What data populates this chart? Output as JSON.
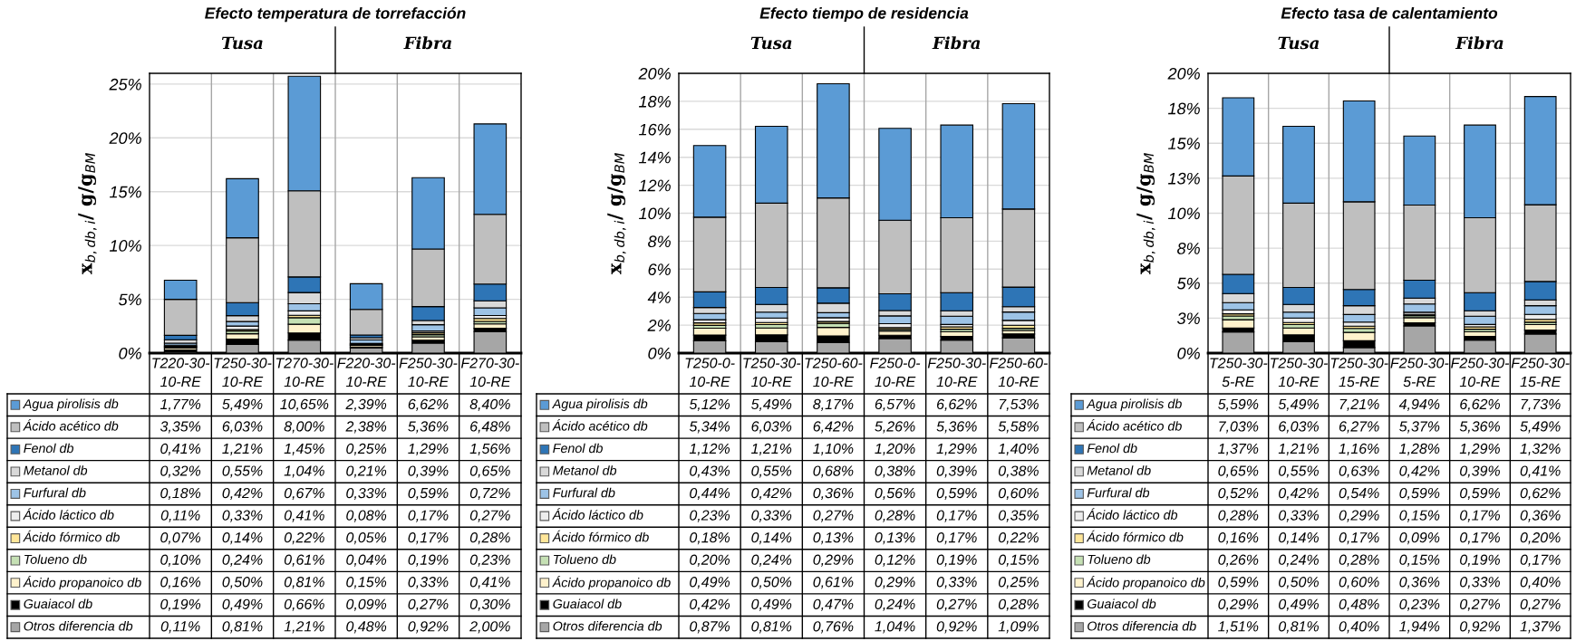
{
  "chart_data": [
    {
      "type": "bar",
      "stacked": true,
      "title": "Efecto temperatura de torrefacción",
      "ylabel": "x$_{b,db,i}$/ g/g$_{BM}$",
      "annotations": [
        "Tusa",
        "Fibra"
      ],
      "categories": [
        "T220-30-10-RE",
        "T250-30-10-RE",
        "T270-30-10-RE",
        "F220-30-10-RE",
        "F250-30-10-RE",
        "F270-30-10-RE"
      ],
      "ylim": [
        0,
        26
      ],
      "yticks": [
        {
          "value": 0,
          "label": "0%"
        },
        {
          "value": 5,
          "label": "5%"
        },
        {
          "value": 10,
          "label": "10%"
        },
        {
          "value": 15,
          "label": "15%"
        },
        {
          "value": 20,
          "label": "20%"
        },
        {
          "value": 25,
          "label": "25%"
        }
      ],
      "grid": "y",
      "legend": "bottom",
      "series": [
        {
          "name": "Otros diferencia db",
          "color": "#a6a6a6",
          "values": [
            0.11,
            0.81,
            1.21,
            0.48,
            0.92,
            2.0
          ],
          "value_labels": [
            "0,11%",
            "0,81%",
            "1,21%",
            "0,48%",
            "0,92%",
            "2,00%"
          ]
        },
        {
          "name": "Guaiacol db",
          "color": "#000000",
          "values": [
            0.19,
            0.49,
            0.66,
            0.09,
            0.27,
            0.3
          ],
          "value_labels": [
            "0,19%",
            "0,49%",
            "0,66%",
            "0,09%",
            "0,27%",
            "0,30%"
          ]
        },
        {
          "name": "Ácido propanoico db",
          "color": "#fff2cc",
          "values": [
            0.16,
            0.5,
            0.81,
            0.15,
            0.33,
            0.41
          ],
          "value_labels": [
            "0,16%",
            "0,50%",
            "0,81%",
            "0,15%",
            "0,33%",
            "0,41%"
          ]
        },
        {
          "name": "Tolueno db",
          "color": "#c5e0b4",
          "values": [
            0.1,
            0.24,
            0.61,
            0.04,
            0.19,
            0.23
          ],
          "value_labels": [
            "0,10%",
            "0,24%",
            "0,61%",
            "0,04%",
            "0,19%",
            "0,23%"
          ]
        },
        {
          "name": "Ácido fórmico db",
          "color": "#ffe699",
          "values": [
            0.07,
            0.14,
            0.22,
            0.05,
            0.17,
            0.28
          ],
          "value_labels": [
            "0,07%",
            "0,14%",
            "0,22%",
            "0,05%",
            "0,17%",
            "0,28%"
          ]
        },
        {
          "name": "Ácido láctico db",
          "color": "#ededed",
          "values": [
            0.11,
            0.33,
            0.41,
            0.08,
            0.17,
            0.27
          ],
          "value_labels": [
            "0,11%",
            "0,33%",
            "0,41%",
            "0,08%",
            "0,17%",
            "0,27%"
          ]
        },
        {
          "name": "Furfural db",
          "color": "#9dc3e6",
          "values": [
            0.18,
            0.42,
            0.67,
            0.33,
            0.59,
            0.72
          ],
          "value_labels": [
            "0,18%",
            "0,42%",
            "0,67%",
            "0,33%",
            "0,59%",
            "0,72%"
          ]
        },
        {
          "name": "Metanol db",
          "color": "#d9d9d9",
          "values": [
            0.32,
            0.55,
            1.04,
            0.21,
            0.39,
            0.65
          ],
          "value_labels": [
            "0,32%",
            "0,55%",
            "1,04%",
            "0,21%",
            "0,39%",
            "0,65%"
          ]
        },
        {
          "name": "Fenol db",
          "color": "#2e75b6",
          "values": [
            0.41,
            1.21,
            1.45,
            0.25,
            1.29,
            1.56
          ],
          "value_labels": [
            "0,41%",
            "1,21%",
            "1,45%",
            "0,25%",
            "1,29%",
            "1,56%"
          ]
        },
        {
          "name": "Ácido acético db",
          "color": "#bfbfbf",
          "values": [
            3.35,
            6.03,
            8.0,
            2.38,
            5.36,
            6.48
          ],
          "value_labels": [
            "3,35%",
            "6,03%",
            "8,00%",
            "2,38%",
            "5,36%",
            "6,48%"
          ]
        },
        {
          "name": "Agua pirolisis db",
          "color": "#5b9bd5",
          "values": [
            1.77,
            5.49,
            10.65,
            2.39,
            6.62,
            8.4
          ],
          "value_labels": [
            "1,77%",
            "5,49%",
            "10,65%",
            "2,39%",
            "6,62%",
            "8,40%"
          ]
        }
      ]
    },
    {
      "type": "bar",
      "stacked": true,
      "title": "Efecto tiempo de residencia",
      "ylabel": "x$_{b,db,i}$/ g/g$_{BM}$",
      "annotations": [
        "Tusa",
        "Fibra"
      ],
      "categories": [
        "T250-0-10-RE",
        "T250-30-10-RE",
        "T250-60-10-RE",
        "F250-0-10-RE",
        "F250-30-10-RE",
        "F250-60-10-RE"
      ],
      "ylim": [
        0,
        20
      ],
      "yticks": [
        {
          "value": 0,
          "label": "0%"
        },
        {
          "value": 2,
          "label": "2%"
        },
        {
          "value": 4,
          "label": "4%"
        },
        {
          "value": 6,
          "label": "6%"
        },
        {
          "value": 8,
          "label": "8%"
        },
        {
          "value": 10,
          "label": "10%"
        },
        {
          "value": 12,
          "label": "12%"
        },
        {
          "value": 14,
          "label": "14%"
        },
        {
          "value": 16,
          "label": "16%"
        },
        {
          "value": 18,
          "label": "18%"
        },
        {
          "value": 20,
          "label": "20%"
        }
      ],
      "grid": "y",
      "legend": "bottom",
      "series": [
        {
          "name": "Otros diferencia db",
          "color": "#a6a6a6",
          "values": [
            0.87,
            0.81,
            0.76,
            1.04,
            0.92,
            1.09
          ],
          "value_labels": [
            "0,87%",
            "0,81%",
            "0,76%",
            "1,04%",
            "0,92%",
            "1,09%"
          ]
        },
        {
          "name": "Guaiacol db",
          "color": "#000000",
          "values": [
            0.42,
            0.49,
            0.47,
            0.24,
            0.27,
            0.28
          ],
          "value_labels": [
            "0,42%",
            "0,49%",
            "0,47%",
            "0,24%",
            "0,27%",
            "0,28%"
          ]
        },
        {
          "name": "Ácido propanoico db",
          "color": "#fff2cc",
          "values": [
            0.49,
            0.5,
            0.61,
            0.29,
            0.33,
            0.25
          ],
          "value_labels": [
            "0,49%",
            "0,50%",
            "0,61%",
            "0,29%",
            "0,33%",
            "0,25%"
          ]
        },
        {
          "name": "Tolueno db",
          "color": "#c5e0b4",
          "values": [
            0.2,
            0.24,
            0.29,
            0.12,
            0.19,
            0.15
          ],
          "value_labels": [
            "0,20%",
            "0,24%",
            "0,29%",
            "0,12%",
            "0,19%",
            "0,15%"
          ]
        },
        {
          "name": "Ácido fórmico db",
          "color": "#ffe699",
          "values": [
            0.18,
            0.14,
            0.13,
            0.13,
            0.17,
            0.22
          ],
          "value_labels": [
            "0,18%",
            "0,14%",
            "0,13%",
            "0,13%",
            "0,17%",
            "0,22%"
          ]
        },
        {
          "name": "Ácido láctico db",
          "color": "#ededed",
          "values": [
            0.23,
            0.33,
            0.27,
            0.28,
            0.17,
            0.35
          ],
          "value_labels": [
            "0,23%",
            "0,33%",
            "0,27%",
            "0,28%",
            "0,17%",
            "0,35%"
          ]
        },
        {
          "name": "Furfural db",
          "color": "#9dc3e6",
          "values": [
            0.44,
            0.42,
            0.36,
            0.56,
            0.59,
            0.6
          ],
          "value_labels": [
            "0,44%",
            "0,42%",
            "0,36%",
            "0,56%",
            "0,59%",
            "0,60%"
          ]
        },
        {
          "name": "Metanol db",
          "color": "#d9d9d9",
          "values": [
            0.43,
            0.55,
            0.68,
            0.38,
            0.39,
            0.38
          ],
          "value_labels": [
            "0,43%",
            "0,55%",
            "0,68%",
            "0,38%",
            "0,39%",
            "0,38%"
          ]
        },
        {
          "name": "Fenol db",
          "color": "#2e75b6",
          "values": [
            1.12,
            1.21,
            1.1,
            1.2,
            1.29,
            1.4
          ],
          "value_labels": [
            "1,12%",
            "1,21%",
            "1,10%",
            "1,20%",
            "1,29%",
            "1,40%"
          ]
        },
        {
          "name": "Ácido acético db",
          "color": "#bfbfbf",
          "values": [
            5.34,
            6.03,
            6.42,
            5.26,
            5.36,
            5.58
          ],
          "value_labels": [
            "5,34%",
            "6,03%",
            "6,42%",
            "5,26%",
            "5,36%",
            "5,58%"
          ]
        },
        {
          "name": "Agua pirolisis db",
          "color": "#5b9bd5",
          "values": [
            5.12,
            5.49,
            8.17,
            6.57,
            6.62,
            7.53
          ],
          "value_labels": [
            "5,12%",
            "5,49%",
            "8,17%",
            "6,57%",
            "6,62%",
            "7,53%"
          ]
        }
      ]
    },
    {
      "type": "bar",
      "stacked": true,
      "title": "Efecto tasa de calentamiento",
      "ylabel": "x$_{b,db,i}$/ g/g$_{BM}$",
      "annotations": [
        "Tusa",
        "Fibra"
      ],
      "categories": [
        "T250-30-5-RE",
        "T250-30-10-RE",
        "T250-30-15-RE",
        "F250-30-5-RE",
        "F250-30-10-RE",
        "F250-30-15-RE"
      ],
      "ylim": [
        0,
        20
      ],
      "yticks": [
        {
          "value": 0,
          "label": "0%"
        },
        {
          "value": 2.5,
          "label": "3%"
        },
        {
          "value": 5,
          "label": "5%"
        },
        {
          "value": 7.5,
          "label": "8%"
        },
        {
          "value": 10,
          "label": "10%"
        },
        {
          "value": 12.5,
          "label": "13%"
        },
        {
          "value": 15,
          "label": "15%"
        },
        {
          "value": 17.5,
          "label": "18%"
        },
        {
          "value": 20,
          "label": "20%"
        }
      ],
      "grid": "y",
      "legend": "bottom",
      "series": [
        {
          "name": "Otros diferencia db",
          "color": "#a6a6a6",
          "values": [
            1.51,
            0.81,
            0.4,
            1.94,
            0.92,
            1.37
          ],
          "value_labels": [
            "1,51%",
            "0,81%",
            "0,40%",
            "1,94%",
            "0,92%",
            "1,37%"
          ]
        },
        {
          "name": "Guaiacol db",
          "color": "#000000",
          "values": [
            0.29,
            0.49,
            0.48,
            0.23,
            0.27,
            0.27
          ],
          "value_labels": [
            "0,29%",
            "0,49%",
            "0,48%",
            "0,23%",
            "0,27%",
            "0,27%"
          ]
        },
        {
          "name": "Ácido propanoico db",
          "color": "#fff2cc",
          "values": [
            0.59,
            0.5,
            0.6,
            0.36,
            0.33,
            0.4
          ],
          "value_labels": [
            "0,59%",
            "0,50%",
            "0,60%",
            "0,36%",
            "0,33%",
            "0,40%"
          ]
        },
        {
          "name": "Tolueno db",
          "color": "#c5e0b4",
          "values": [
            0.26,
            0.24,
            0.28,
            0.15,
            0.19,
            0.17
          ],
          "value_labels": [
            "0,26%",
            "0,24%",
            "0,28%",
            "0,15%",
            "0,19%",
            "0,17%"
          ]
        },
        {
          "name": "Ácido fórmico db",
          "color": "#ffe699",
          "values": [
            0.16,
            0.14,
            0.17,
            0.09,
            0.17,
            0.2
          ],
          "value_labels": [
            "0,16%",
            "0,14%",
            "0,17%",
            "0,09%",
            "0,17%",
            "0,20%"
          ]
        },
        {
          "name": "Ácido láctico db",
          "color": "#ededed",
          "values": [
            0.28,
            0.33,
            0.29,
            0.15,
            0.17,
            0.36
          ],
          "value_labels": [
            "0,28%",
            "0,33%",
            "0,29%",
            "0,15%",
            "0,17%",
            "0,36%"
          ]
        },
        {
          "name": "Furfural db",
          "color": "#9dc3e6",
          "values": [
            0.52,
            0.42,
            0.54,
            0.59,
            0.59,
            0.62
          ],
          "value_labels": [
            "0,52%",
            "0,42%",
            "0,54%",
            "0,59%",
            "0,59%",
            "0,62%"
          ]
        },
        {
          "name": "Metanol db",
          "color": "#d9d9d9",
          "values": [
            0.65,
            0.55,
            0.63,
            0.42,
            0.39,
            0.41
          ],
          "value_labels": [
            "0,65%",
            "0,55%",
            "0,63%",
            "0,42%",
            "0,39%",
            "0,41%"
          ]
        },
        {
          "name": "Fenol db",
          "color": "#2e75b6",
          "values": [
            1.37,
            1.21,
            1.16,
            1.28,
            1.29,
            1.32
          ],
          "value_labels": [
            "1,37%",
            "1,21%",
            "1,16%",
            "1,28%",
            "1,29%",
            "1,32%"
          ]
        },
        {
          "name": "Ácido acético db",
          "color": "#bfbfbf",
          "values": [
            7.03,
            6.03,
            6.27,
            5.37,
            5.36,
            5.49
          ],
          "value_labels": [
            "7,03%",
            "6,03%",
            "6,27%",
            "5,37%",
            "5,36%",
            "5,49%"
          ]
        },
        {
          "name": "Agua pirolisis db",
          "color": "#5b9bd5",
          "values": [
            5.59,
            5.49,
            7.21,
            4.94,
            6.62,
            7.73
          ],
          "value_labels": [
            "5,59%",
            "5,49%",
            "7,21%",
            "4,94%",
            "6,62%",
            "7,73%"
          ]
        }
      ]
    }
  ]
}
